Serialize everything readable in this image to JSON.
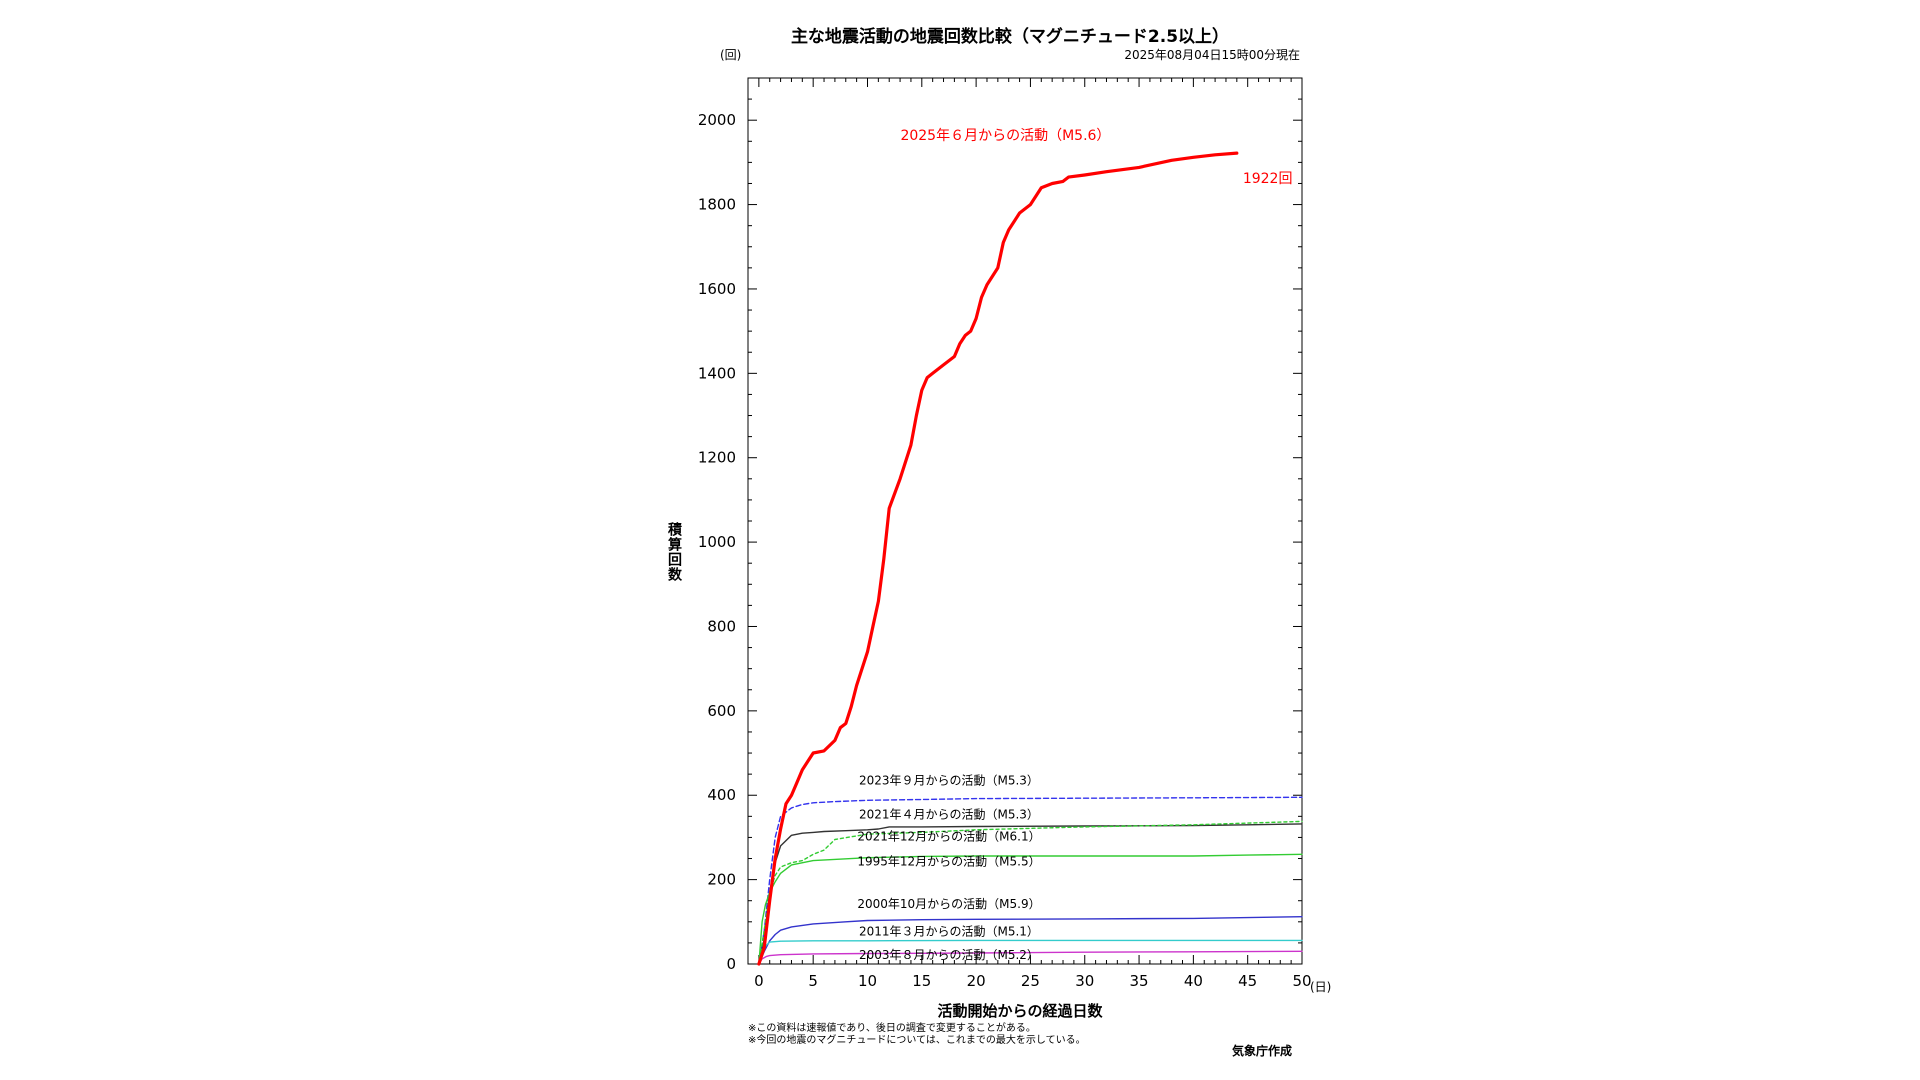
{
  "page": {
    "title": "主な地震活動の地震回数比較（マグニチュード2.5以上）",
    "timestamp": "2025年08月04日15時00分現在",
    "y_unit": "(回)",
    "x_unit": "(日)",
    "notes": [
      "※この資料は速報値であり、後日の調査で変更することがある。",
      "※今回の地震のマグニチュードについては、これまでの最大を示している。"
    ],
    "agency": "気象庁作成"
  },
  "chart_data": {
    "type": "line",
    "title": "主な地震活動の地震回数比較（マグニチュード2.5以上）",
    "xlabel": "活動開始からの経過日数",
    "ylabel": "積算回数",
    "xlim": [
      -1,
      50
    ],
    "ylim": [
      0,
      2100
    ],
    "x_ticks": [
      0,
      5,
      10,
      15,
      20,
      25,
      30,
      35,
      40,
      45,
      50
    ],
    "y_ticks": [
      0,
      200,
      400,
      600,
      800,
      1000,
      1200,
      1400,
      1600,
      1800,
      2000
    ],
    "final_annotation": "1922回",
    "series": [
      {
        "name": "2025年６月からの活動（M5.6）",
        "color": "#ff0000",
        "style": "solid",
        "width": 3.2,
        "x": [
          0,
          0.5,
          1,
          1.5,
          2,
          2.5,
          3,
          3.5,
          4,
          4.5,
          5,
          6,
          7,
          7.5,
          8,
          8.5,
          9,
          10,
          10.5,
          11,
          11.5,
          12,
          13,
          14,
          14.5,
          15,
          15.5,
          16,
          17,
          18,
          18.5,
          19,
          19.5,
          20,
          20.5,
          21,
          22,
          22.5,
          23,
          24,
          25,
          25.5,
          26,
          27,
          28,
          28.5,
          30,
          32,
          35,
          38,
          40,
          42,
          44
        ],
        "y": [
          0,
          40,
          150,
          250,
          320,
          380,
          400,
          430,
          460,
          480,
          500,
          505,
          530,
          560,
          570,
          610,
          660,
          740,
          800,
          860,
          960,
          1080,
          1150,
          1230,
          1300,
          1360,
          1390,
          1400,
          1420,
          1440,
          1470,
          1490,
          1500,
          1530,
          1580,
          1610,
          1650,
          1710,
          1740,
          1780,
          1800,
          1820,
          1840,
          1850,
          1855,
          1865,
          1870,
          1878,
          1888,
          1905,
          1912,
          1918,
          1922
        ]
      },
      {
        "name": "2023年９月からの活動（M5.3）",
        "color": "#3333ee",
        "style": "dashed",
        "width": 1.4,
        "x": [
          0,
          0.5,
          1,
          1.5,
          2,
          3,
          4,
          5,
          7,
          10,
          15,
          20,
          30,
          40,
          50
        ],
        "y": [
          0,
          80,
          200,
          300,
          350,
          370,
          378,
          382,
          385,
          388,
          390,
          392,
          393,
          394,
          395
        ]
      },
      {
        "name": "2021年４月からの活動（M5.3）",
        "color": "#333333",
        "style": "solid",
        "width": 1.4,
        "x": [
          0,
          0.5,
          1,
          1.5,
          2,
          3,
          4,
          5,
          6,
          8,
          10,
          11,
          12,
          15,
          20,
          30,
          40,
          45,
          50
        ],
        "y": [
          0,
          60,
          170,
          240,
          280,
          305,
          310,
          312,
          314,
          316,
          318,
          320,
          325,
          325,
          326,
          327,
          328,
          330,
          332
        ]
      },
      {
        "name": "2021年12月からの活動（M6.1）",
        "color": "#33cc33",
        "style": "dotted",
        "width": 1.4,
        "x": [
          0,
          0.5,
          1,
          1.5,
          2,
          3,
          4,
          5,
          6,
          7,
          10,
          15,
          20,
          30,
          40,
          50
        ],
        "y": [
          0,
          80,
          170,
          210,
          230,
          240,
          245,
          260,
          270,
          295,
          308,
          312,
          318,
          325,
          330,
          338
        ]
      },
      {
        "name": "1995年12月からの活動（M5.5）",
        "color": "#33cc33",
        "style": "solid",
        "width": 1.4,
        "x": [
          0,
          0.3,
          0.6,
          1,
          1.5,
          2,
          3,
          5,
          10,
          15,
          20,
          30,
          40,
          45,
          50
        ],
        "y": [
          0,
          100,
          140,
          170,
          195,
          215,
          235,
          245,
          252,
          255,
          256,
          256,
          256,
          258,
          260
        ]
      },
      {
        "name": "2000年10月からの活動（M5.9）",
        "color": "#3333cc",
        "style": "solid",
        "width": 1.4,
        "x": [
          0,
          0.5,
          1,
          1.5,
          2,
          3,
          5,
          8,
          10,
          15,
          20,
          30,
          40,
          45,
          50
        ],
        "y": [
          0,
          30,
          55,
          70,
          80,
          88,
          95,
          100,
          103,
          105,
          106,
          107,
          108,
          110,
          112
        ]
      },
      {
        "name": "2011年３月からの活動（M5.1）",
        "color": "#33cccc",
        "style": "solid",
        "width": 1.4,
        "x": [
          0,
          0.3,
          0.7,
          1,
          2,
          5,
          10,
          20,
          30,
          40,
          50
        ],
        "y": [
          0,
          30,
          45,
          52,
          54,
          55,
          55,
          56,
          56,
          56,
          56
        ]
      },
      {
        "name": "2003年８月からの活動（M5.2）",
        "color": "#cc33cc",
        "style": "solid",
        "width": 1.4,
        "x": [
          0,
          0.3,
          0.7,
          1,
          2,
          5,
          10,
          20,
          30,
          40,
          50
        ],
        "y": [
          0,
          12,
          18,
          20,
          22,
          24,
          25,
          26,
          28,
          29,
          30
        ]
      }
    ],
    "series_labels": [
      {
        "series": 0,
        "text": "2025年６月からの活動（M5.6）",
        "color": "#ff0000",
        "x": 22.7,
        "y": 1953,
        "size": 14
      },
      {
        "series": 1,
        "text": "2023年９月からの活動（M5.3）",
        "color": "#000000",
        "x": 17.5,
        "y": 425,
        "size": 12
      },
      {
        "series": 2,
        "text": "2021年４月からの活動（M5.3）",
        "color": "#000000",
        "x": 17.5,
        "y": 345,
        "size": 12
      },
      {
        "series": 3,
        "text": "2021年12月からの活動（M6.1）",
        "color": "#000000",
        "x": 17.5,
        "y": 293,
        "size": 12
      },
      {
        "series": 4,
        "text": "1995年12月からの活動（M5.5）",
        "color": "#000000",
        "x": 17.5,
        "y": 233,
        "size": 12
      },
      {
        "series": 5,
        "text": "2000年10月からの活動（M5.9）",
        "color": "#000000",
        "x": 17.5,
        "y": 133,
        "size": 12
      },
      {
        "series": 6,
        "text": "2011年３月からの活動（M5.1）",
        "color": "#000000",
        "x": 17.5,
        "y": 68,
        "size": 12
      },
      {
        "series": 7,
        "text": "2003年８月からの活動（M5.2）",
        "color": "#000000",
        "x": 17.5,
        "y": 12,
        "size": 12
      }
    ]
  }
}
